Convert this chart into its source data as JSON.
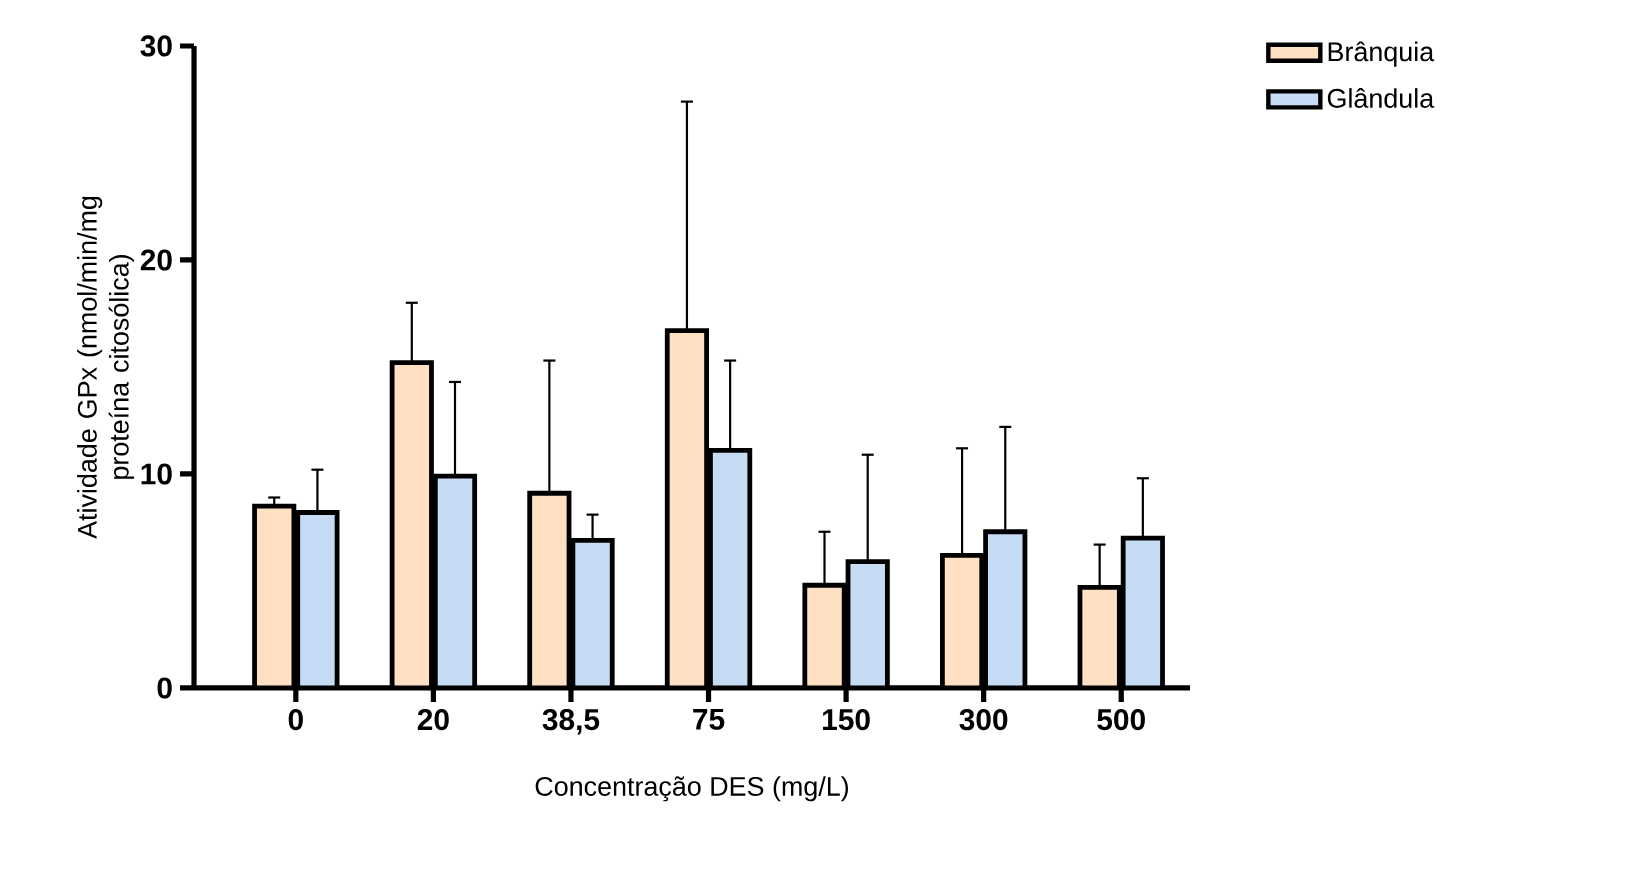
{
  "chart_data": {
    "type": "bar",
    "xlabel": "Concentração DES (mg/L)",
    "ylabel": "Atividade GPx (nmol/min/mg proteína citosólica)",
    "categories": [
      "0",
      "20",
      "38,5",
      "75",
      "150",
      "300",
      "500"
    ],
    "series": [
      {
        "name": "Brânquia",
        "color": "#ffe0c2",
        "values": [
          8.5,
          15.2,
          9.1,
          16.7,
          4.8,
          6.2,
          4.7
        ],
        "errors": [
          [
            8.5,
            8.9
          ],
          [
            15.2,
            18.0
          ],
          [
            9.1,
            15.3
          ],
          [
            16.7,
            27.4
          ],
          [
            4.8,
            7.3
          ],
          [
            6.2,
            11.2
          ],
          [
            4.7,
            6.7
          ]
        ]
      },
      {
        "name": "Glândula",
        "color": "#c6dcf5",
        "values": [
          8.2,
          9.9,
          6.9,
          11.1,
          5.9,
          7.3,
          7.0
        ],
        "errors": [
          [
            8.2,
            10.2
          ],
          [
            9.9,
            14.3
          ],
          [
            6.9,
            8.1
          ],
          [
            11.1,
            15.3
          ],
          [
            5.9,
            10.9
          ],
          [
            7.3,
            12.2
          ],
          [
            7.0,
            9.8
          ]
        ]
      }
    ],
    "ylim": [
      0,
      30
    ],
    "yticks": [
      0,
      10,
      20,
      30
    ],
    "grid": false,
    "legend": "top right"
  }
}
